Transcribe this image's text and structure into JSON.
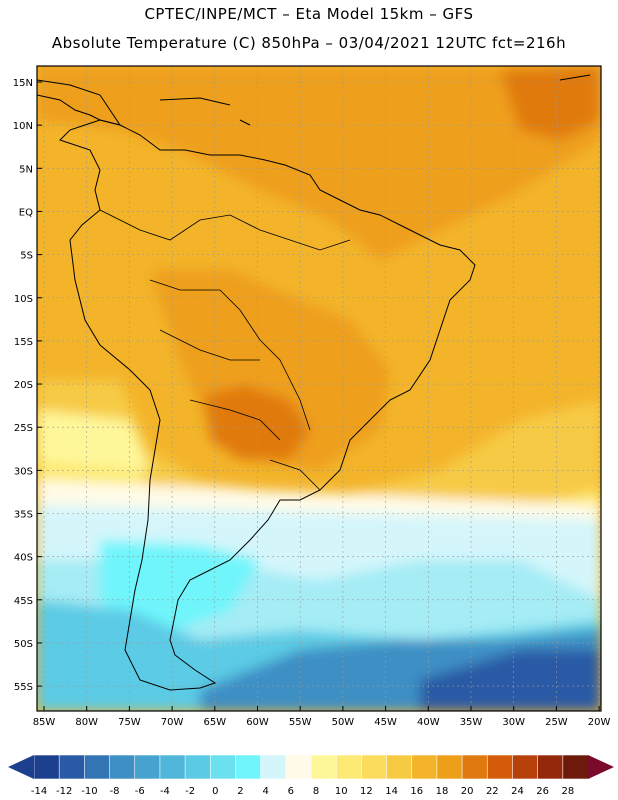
{
  "header": {
    "line1": "CPTEC/INPE/MCT –   Eta Model 15km – GFS",
    "line2": "Absolute Temperature (C) 850hPa – 03/04/2021 12UTC fct=216h"
  },
  "map": {
    "lat_labels": [
      "15N",
      "10N",
      "5N",
      "EQ",
      "5S",
      "10S",
      "15S",
      "20S",
      "25S",
      "30S",
      "35S",
      "40S",
      "45S",
      "50S",
      "55S"
    ],
    "lon_labels": [
      "85W",
      "80W",
      "75W",
      "70W",
      "65W",
      "60W",
      "55W",
      "50W",
      "45W",
      "40W",
      "35W",
      "30W",
      "25W",
      "20W"
    ]
  },
  "colorbar": {
    "labels": [
      "-14",
      "-12",
      "-10",
      "-8",
      "-6",
      "-4",
      "-2",
      "0",
      "2",
      "4",
      "6",
      "8",
      "10",
      "12",
      "14",
      "16",
      "18",
      "20",
      "22",
      "24",
      "26",
      "28"
    ],
    "colors": [
      "#1c3f8e",
      "#2a5aa5",
      "#3374b4",
      "#3d8fc4",
      "#46a3cf",
      "#4fb6da",
      "#5bcbe5",
      "#6be0ef",
      "#6ff5fb",
      "#d4f6fb",
      "#fffbe8",
      "#fef79a",
      "#fdea74",
      "#fbdc5c",
      "#f7ca44",
      "#f3b42a",
      "#ee9f1a",
      "#e07a10",
      "#d45c0b",
      "#b8400a",
      "#93290a",
      "#6d1a0b"
    ]
  },
  "palette": {
    "deep_blue": "#1c3f8e",
    "blue": "#3374b4",
    "cyan": "#5bcbe5",
    "light_cyan": "#a5ecf5",
    "pale_cyan": "#d4f6fb",
    "cream": "#fffbe8",
    "yellow": "#fef79a",
    "light_orange": "#f7ca44",
    "orange": "#f3b42a",
    "dark_orange": "#ee9f1a",
    "red_orange": "#e07a10",
    "coast": "#000000",
    "grid": "#9a9a9a"
  }
}
